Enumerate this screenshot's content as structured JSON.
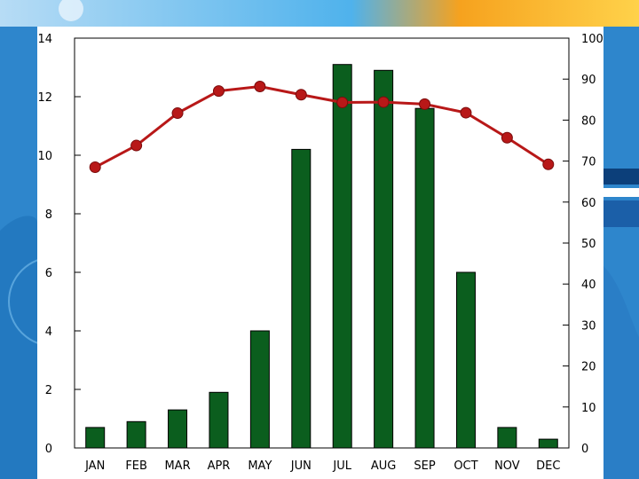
{
  "chart_data": {
    "type": "bar",
    "categories": [
      "JAN",
      "FEB",
      "MAR",
      "APR",
      "MAY",
      "JUN",
      "JUL",
      "AUG",
      "SEP",
      "OCT",
      "NOV",
      "DEC"
    ],
    "y_left": {
      "ylim": [
        0,
        14
      ],
      "ticks": [
        "0",
        "2",
        "4",
        "6",
        "8",
        "10",
        "12",
        "14"
      ]
    },
    "y_right": {
      "ylim": [
        0,
        100
      ],
      "ticks": [
        "0",
        "10",
        "20",
        "30",
        "40",
        "50",
        "60",
        "70",
        "80",
        "90",
        "100"
      ]
    },
    "series": [
      {
        "type": "bar",
        "axis": "left",
        "color": "#0b5e1e",
        "values": [
          0.7,
          0.9,
          1.3,
          1.9,
          4.0,
          10.2,
          13.1,
          12.9,
          11.6,
          6.0,
          0.7,
          0.3
        ]
      },
      {
        "type": "line",
        "axis": "right",
        "color": "#b81818",
        "values": [
          68.5,
          73.8,
          81.7,
          87.1,
          88.2,
          86.2,
          84.3,
          84.4,
          83.9,
          81.8,
          75.7,
          69.2
        ]
      }
    ],
    "grid": false,
    "legend": "none"
  }
}
